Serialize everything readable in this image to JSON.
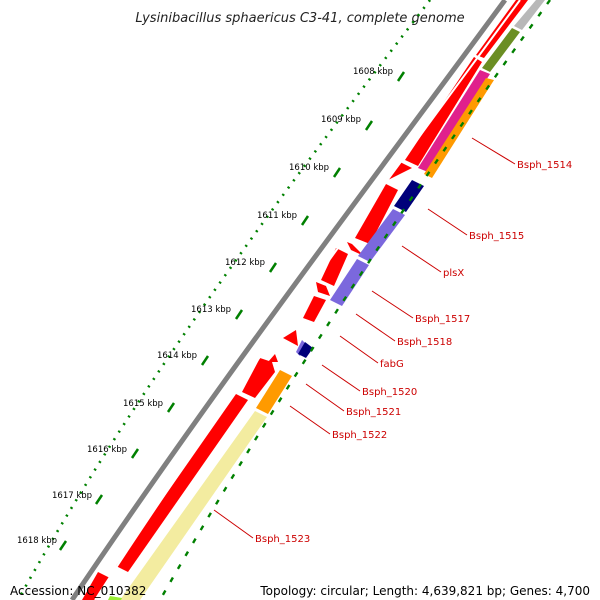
{
  "title": "Lysinibacillus sphaericus C3-41, complete genome",
  "footer": {
    "accession": "Accession: NC_010382",
    "topology": "Topology: circular; Length: 4,639,821 bp; Genes: 4,700"
  },
  "tick_labels": [
    "1608 kbp",
    "1609 kbp",
    "1610 kbp",
    "1611 kbp",
    "1612 kbp",
    "1613 kbp",
    "1614 kbp",
    "1615 kbp",
    "1616 kbp",
    "1617 kbp",
    "1618 kbp"
  ],
  "gene_labels": [
    "Bsph_1514",
    "Bsph_1515",
    "plsX",
    "Bsph_1517",
    "Bsph_1518",
    "fabG",
    "Bsph_1520",
    "Bsph_1521",
    "Bsph_1522",
    "Bsph_1523"
  ],
  "colors": {
    "backbone": "#8a8a8a",
    "gene": "#ff0000",
    "tick": "#008000",
    "label": "#cc0000",
    "leader": "#cc0000",
    "cog_pink": "#e0208c",
    "cog_orange": "#ff9a00",
    "cog_navy": "#00007a",
    "cog_purple": "#7b68dd",
    "cog_yellow": "#f3eca0",
    "cog_olive": "#6b8e23",
    "cog_grey": "#b8b8b8",
    "cog_lime": "#99ee33"
  }
}
